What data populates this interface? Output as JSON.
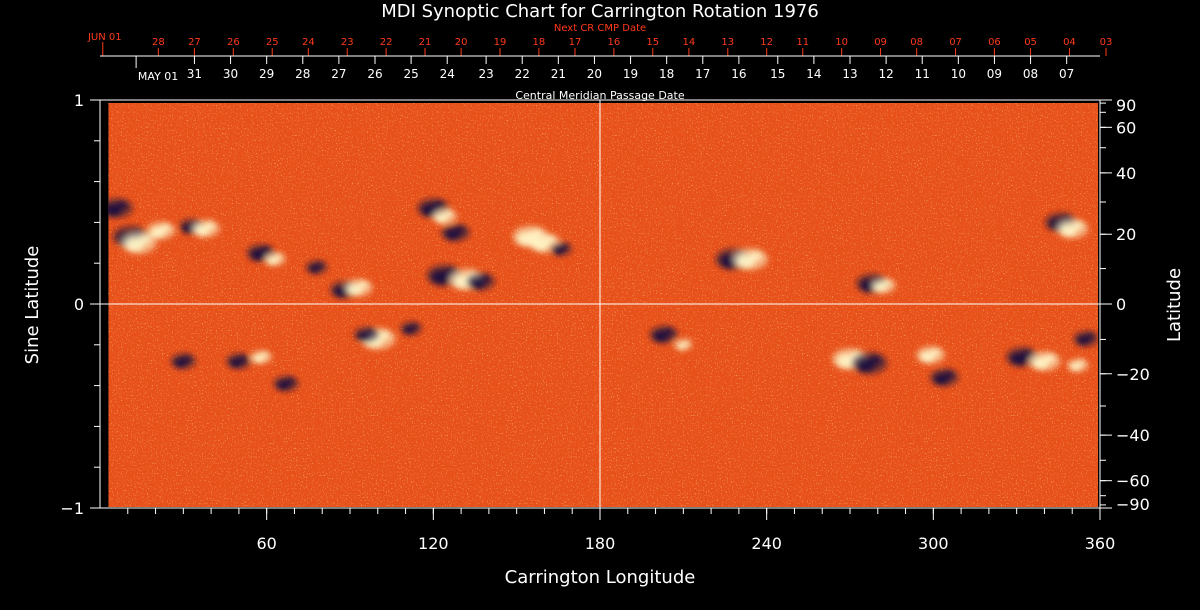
{
  "chart_data": {
    "type": "heatmap",
    "title": "MDI Synoptic Chart for Carrington Rotation 1976",
    "xlabel": "Carrington Longitude",
    "ylabel_left": "Sine Latitude",
    "ylabel_right": "Latitude",
    "xlim": [
      0,
      360
    ],
    "ylim": [
      -1,
      1
    ],
    "x_ticks": [
      60,
      120,
      180,
      240,
      300,
      360
    ],
    "y_ticks_left": [
      {
        "value": 1,
        "label": "1"
      },
      {
        "value": 0,
        "label": "0"
      },
      {
        "value": -1,
        "label": "−1"
      }
    ],
    "y_ticks_right": [
      {
        "deg": 90,
        "label": "90"
      },
      {
        "deg": 60,
        "label": "60"
      },
      {
        "deg": 40,
        "label": "40"
      },
      {
        "deg": 20,
        "label": "20"
      },
      {
        "deg": 0,
        "label": "0"
      },
      {
        "deg": -20,
        "label": "−20"
      },
      {
        "deg": -40,
        "label": "−40"
      },
      {
        "deg": -60,
        "label": "−60"
      },
      {
        "deg": -90,
        "label": "−90"
      }
    ],
    "cmp_axis": {
      "label": "Central Meridian Passage Date",
      "month_label": "MAY 01",
      "month_longitude": 13,
      "dates": [
        {
          "lon": 34,
          "label": "31"
        },
        {
          "lon": 47,
          "label": "30"
        },
        {
          "lon": 60,
          "label": "29"
        },
        {
          "lon": 73,
          "label": "28"
        },
        {
          "lon": 86,
          "label": "27"
        },
        {
          "lon": 99,
          "label": "26"
        },
        {
          "lon": 112,
          "label": "25"
        },
        {
          "lon": 125,
          "label": "24"
        },
        {
          "lon": 139,
          "label": "23"
        },
        {
          "lon": 152,
          "label": "22"
        },
        {
          "lon": 165,
          "label": "21"
        },
        {
          "lon": 178,
          "label": "20"
        },
        {
          "lon": 191,
          "label": "19"
        },
        {
          "lon": 204,
          "label": "18"
        },
        {
          "lon": 217,
          "label": "17"
        },
        {
          "lon": 230,
          "label": "16"
        },
        {
          "lon": 244,
          "label": "15"
        },
        {
          "lon": 257,
          "label": "14"
        },
        {
          "lon": 270,
          "label": "13"
        },
        {
          "lon": 283,
          "label": "12"
        },
        {
          "lon": 296,
          "label": "11"
        },
        {
          "lon": 309,
          "label": "10"
        },
        {
          "lon": 322,
          "label": "09"
        },
        {
          "lon": 335,
          "label": "08"
        },
        {
          "lon": 348,
          "label": "07"
        }
      ]
    },
    "next_cmp_axis": {
      "label": "Next CR CMP Date",
      "month_label": "JUN 01",
      "month_longitude": 1,
      "dates": [
        {
          "lon": 21,
          "label": "28"
        },
        {
          "lon": 34,
          "label": "27"
        },
        {
          "lon": 48,
          "label": "26"
        },
        {
          "lon": 62,
          "label": "25"
        },
        {
          "lon": 75,
          "label": "24"
        },
        {
          "lon": 89,
          "label": "23"
        },
        {
          "lon": 103,
          "label": "22"
        },
        {
          "lon": 117,
          "label": "21"
        },
        {
          "lon": 130,
          "label": "20"
        },
        {
          "lon": 144,
          "label": "19"
        },
        {
          "lon": 158,
          "label": "18"
        },
        {
          "lon": 171,
          "label": "17"
        },
        {
          "lon": 185,
          "label": "16"
        },
        {
          "lon": 199,
          "label": "15"
        },
        {
          "lon": 212,
          "label": "14"
        },
        {
          "lon": 226,
          "label": "13"
        },
        {
          "lon": 240,
          "label": "12"
        },
        {
          "lon": 253,
          "label": "11"
        },
        {
          "lon": 267,
          "label": "10"
        },
        {
          "lon": 281,
          "label": "09"
        },
        {
          "lon": 294,
          "label": "08"
        },
        {
          "lon": 308,
          "label": "07"
        },
        {
          "lon": 322,
          "label": "06"
        },
        {
          "lon": 335,
          "label": "05"
        },
        {
          "lon": 349,
          "label": "04"
        },
        {
          "lon": 363,
          "label": "03"
        }
      ]
    },
    "reference_lines": {
      "longitude": 180,
      "sine_latitude": 0
    },
    "colormap": {
      "background": "#e8501a",
      "positive": "#fff6c8",
      "negative": "#1a1040"
    },
    "active_regions": [
      {
        "lon": 6,
        "sinlat": 0.47,
        "polarity": "negative",
        "strength": 0.9
      },
      {
        "lon": 11,
        "sinlat": 0.33,
        "polarity": "negative",
        "strength": 1.0
      },
      {
        "lon": 14,
        "sinlat": 0.3,
        "polarity": "positive",
        "strength": 1.0
      },
      {
        "lon": 22,
        "sinlat": 0.36,
        "polarity": "positive",
        "strength": 0.8
      },
      {
        "lon": 33,
        "sinlat": 0.38,
        "polarity": "negative",
        "strength": 0.7
      },
      {
        "lon": 38,
        "sinlat": 0.37,
        "polarity": "positive",
        "strength": 0.8
      },
      {
        "lon": 58,
        "sinlat": 0.25,
        "polarity": "negative",
        "strength": 0.8
      },
      {
        "lon": 63,
        "sinlat": 0.22,
        "polarity": "positive",
        "strength": 0.6
      },
      {
        "lon": 78,
        "sinlat": 0.18,
        "polarity": "negative",
        "strength": 0.6
      },
      {
        "lon": 88,
        "sinlat": 0.07,
        "polarity": "negative",
        "strength": 0.8
      },
      {
        "lon": 93,
        "sinlat": 0.08,
        "polarity": "positive",
        "strength": 0.8
      },
      {
        "lon": 120,
        "sinlat": 0.47,
        "polarity": "negative",
        "strength": 0.9
      },
      {
        "lon": 124,
        "sinlat": 0.43,
        "polarity": "positive",
        "strength": 0.7
      },
      {
        "lon": 128,
        "sinlat": 0.35,
        "polarity": "negative",
        "strength": 0.8
      },
      {
        "lon": 124,
        "sinlat": 0.14,
        "polarity": "negative",
        "strength": 1.0
      },
      {
        "lon": 132,
        "sinlat": 0.12,
        "polarity": "positive",
        "strength": 1.0
      },
      {
        "lon": 137,
        "sinlat": 0.11,
        "polarity": "negative",
        "strength": 0.8
      },
      {
        "lon": 155,
        "sinlat": 0.33,
        "polarity": "positive",
        "strength": 1.0
      },
      {
        "lon": 160,
        "sinlat": 0.3,
        "polarity": "positive",
        "strength": 0.9
      },
      {
        "lon": 166,
        "sinlat": 0.27,
        "polarity": "negative",
        "strength": 0.6
      },
      {
        "lon": 228,
        "sinlat": 0.22,
        "polarity": "negative",
        "strength": 1.0
      },
      {
        "lon": 234,
        "sinlat": 0.22,
        "polarity": "positive",
        "strength": 1.0
      },
      {
        "lon": 278,
        "sinlat": 0.1,
        "polarity": "negative",
        "strength": 0.9
      },
      {
        "lon": 282,
        "sinlat": 0.09,
        "polarity": "positive",
        "strength": 0.7
      },
      {
        "lon": 346,
        "sinlat": 0.4,
        "polarity": "negative",
        "strength": 0.9
      },
      {
        "lon": 350,
        "sinlat": 0.37,
        "polarity": "positive",
        "strength": 0.9
      },
      {
        "lon": 100,
        "sinlat": -0.17,
        "polarity": "positive",
        "strength": 1.0
      },
      {
        "lon": 96,
        "sinlat": -0.15,
        "polarity": "negative",
        "strength": 0.7
      },
      {
        "lon": 112,
        "sinlat": -0.12,
        "polarity": "negative",
        "strength": 0.6
      },
      {
        "lon": 30,
        "sinlat": -0.28,
        "polarity": "negative",
        "strength": 0.7
      },
      {
        "lon": 50,
        "sinlat": -0.28,
        "polarity": "negative",
        "strength": 0.7
      },
      {
        "lon": 58,
        "sinlat": -0.26,
        "polarity": "positive",
        "strength": 0.6
      },
      {
        "lon": 67,
        "sinlat": -0.39,
        "polarity": "negative",
        "strength": 0.7
      },
      {
        "lon": 203,
        "sinlat": -0.15,
        "polarity": "negative",
        "strength": 0.8
      },
      {
        "lon": 210,
        "sinlat": -0.2,
        "polarity": "positive",
        "strength": 0.5
      },
      {
        "lon": 270,
        "sinlat": -0.27,
        "polarity": "positive",
        "strength": 1.0
      },
      {
        "lon": 277,
        "sinlat": -0.29,
        "polarity": "negative",
        "strength": 1.0
      },
      {
        "lon": 299,
        "sinlat": -0.25,
        "polarity": "positive",
        "strength": 0.8
      },
      {
        "lon": 304,
        "sinlat": -0.36,
        "polarity": "negative",
        "strength": 0.8
      },
      {
        "lon": 332,
        "sinlat": -0.26,
        "polarity": "negative",
        "strength": 0.9
      },
      {
        "lon": 340,
        "sinlat": -0.28,
        "polarity": "positive",
        "strength": 0.9
      },
      {
        "lon": 355,
        "sinlat": -0.17,
        "polarity": "negative",
        "strength": 0.7
      },
      {
        "lon": 352,
        "sinlat": -0.3,
        "polarity": "positive",
        "strength": 0.6
      }
    ]
  }
}
